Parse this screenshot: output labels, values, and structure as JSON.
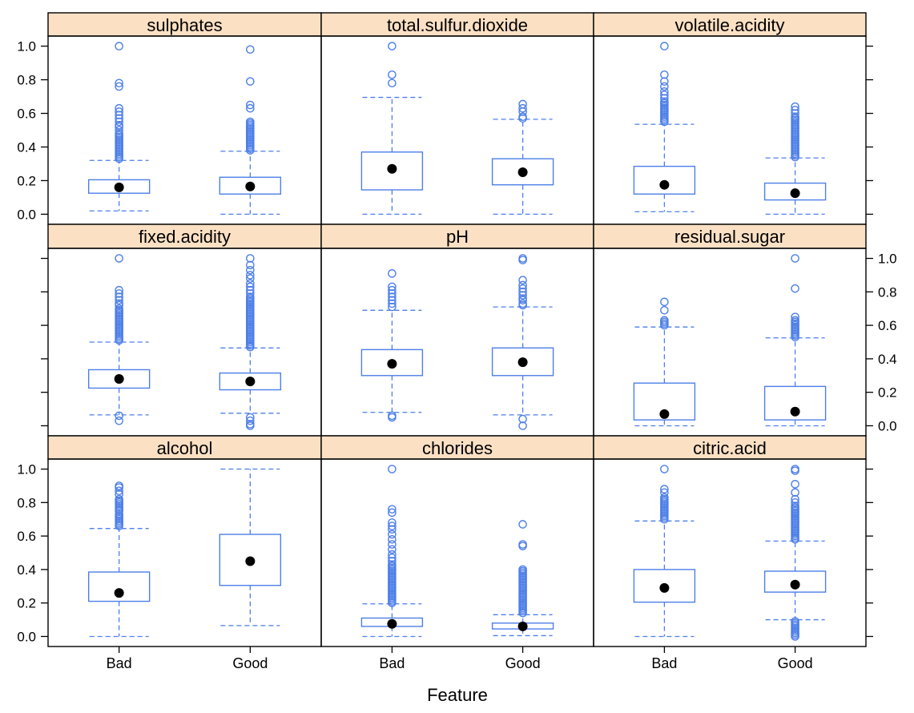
{
  "chart_data": {
    "type": "box",
    "xlabel": "Feature",
    "ylabel": "",
    "categories": [
      "Bad",
      "Good"
    ],
    "y_ticks": [
      "0.0",
      "0.2",
      "0.4",
      "0.6",
      "0.8",
      "1.0"
    ],
    "ylim": [
      -0.06,
      1.06
    ],
    "layout": {
      "rows": 3,
      "cols": 3
    },
    "colors": {
      "box": "#4d7fe8",
      "median_dot": "#000000",
      "strip_bg": "#fbe0c4",
      "frame": "#000000"
    },
    "panels": [
      {
        "title": "sulphates",
        "stats": [
          {
            "category": "Bad",
            "whisker_low": 0.02,
            "q1": 0.125,
            "median": 0.16,
            "q3": 0.205,
            "whisker_high": 0.32,
            "outliers": [
              0.33,
              0.34,
              0.35,
              0.36,
              0.37,
              0.38,
              0.39,
              0.4,
              0.41,
              0.42,
              0.43,
              0.44,
              0.45,
              0.46,
              0.47,
              0.48,
              0.5,
              0.52,
              0.53,
              0.55,
              0.57,
              0.59,
              0.61,
              0.63,
              0.76,
              0.78,
              1.0
            ]
          },
          {
            "category": "Good",
            "whisker_low": 0.0,
            "q1": 0.12,
            "median": 0.165,
            "q3": 0.22,
            "whisker_high": 0.375,
            "outliers": [
              0.38,
              0.39,
              0.4,
              0.41,
              0.42,
              0.43,
              0.44,
              0.45,
              0.46,
              0.47,
              0.48,
              0.49,
              0.5,
              0.51,
              0.52,
              0.53,
              0.54,
              0.55,
              0.63,
              0.65,
              0.79,
              0.98
            ]
          }
        ]
      },
      {
        "title": "total.sulfur.dioxide",
        "stats": [
          {
            "category": "Bad",
            "whisker_low": 0.0,
            "q1": 0.145,
            "median": 0.27,
            "q3": 0.37,
            "whisker_high": 0.695,
            "outliers": [
              0.78,
              0.83,
              1.0
            ]
          },
          {
            "category": "Good",
            "whisker_low": 0.0,
            "q1": 0.175,
            "median": 0.25,
            "q3": 0.33,
            "whisker_high": 0.565,
            "outliers": [
              0.57,
              0.58,
              0.61,
              0.63,
              0.655
            ]
          }
        ]
      },
      {
        "title": "volatile.acidity",
        "stats": [
          {
            "category": "Bad",
            "whisker_low": 0.015,
            "q1": 0.12,
            "median": 0.175,
            "q3": 0.285,
            "whisker_high": 0.535,
            "outliers": [
              0.55,
              0.56,
              0.57,
              0.58,
              0.59,
              0.6,
              0.61,
              0.62,
              0.63,
              0.64,
              0.65,
              0.66,
              0.67,
              0.69,
              0.71,
              0.73,
              0.76,
              0.79,
              0.83,
              1.0
            ]
          },
          {
            "category": "Good",
            "whisker_low": 0.0,
            "q1": 0.085,
            "median": 0.125,
            "q3": 0.185,
            "whisker_high": 0.335,
            "outliers": [
              0.34,
              0.35,
              0.36,
              0.37,
              0.38,
              0.39,
              0.4,
              0.41,
              0.42,
              0.43,
              0.44,
              0.45,
              0.46,
              0.47,
              0.48,
              0.49,
              0.5,
              0.51,
              0.52,
              0.53,
              0.54,
              0.55,
              0.56,
              0.57,
              0.58,
              0.6,
              0.62,
              0.64
            ]
          }
        ]
      },
      {
        "title": "fixed.acidity",
        "stats": [
          {
            "category": "Bad",
            "whisker_low": 0.065,
            "q1": 0.225,
            "median": 0.28,
            "q3": 0.335,
            "whisker_high": 0.5,
            "outliers": [
              0.03,
              0.06,
              0.51,
              0.52,
              0.53,
              0.54,
              0.55,
              0.56,
              0.57,
              0.58,
              0.59,
              0.6,
              0.61,
              0.62,
              0.63,
              0.64,
              0.65,
              0.66,
              0.67,
              0.68,
              0.69,
              0.7,
              0.72,
              0.73,
              0.75,
              0.77,
              0.79,
              0.81,
              1.0
            ]
          },
          {
            "category": "Good",
            "whisker_low": 0.075,
            "q1": 0.215,
            "median": 0.265,
            "q3": 0.315,
            "whisker_high": 0.465,
            "outliers": [
              0.0,
              0.01,
              0.03,
              0.05,
              0.47,
              0.48,
              0.49,
              0.5,
              0.51,
              0.52,
              0.53,
              0.54,
              0.55,
              0.56,
              0.57,
              0.58,
              0.59,
              0.6,
              0.61,
              0.62,
              0.63,
              0.64,
              0.65,
              0.66,
              0.67,
              0.68,
              0.69,
              0.7,
              0.71,
              0.72,
              0.73,
              0.74,
              0.75,
              0.76,
              0.77,
              0.79,
              0.81,
              0.83,
              0.85,
              0.88,
              0.9,
              0.93,
              0.96,
              1.0
            ]
          }
        ]
      },
      {
        "title": "pH",
        "stats": [
          {
            "category": "Bad",
            "whisker_low": 0.08,
            "q1": 0.3,
            "median": 0.37,
            "q3": 0.455,
            "whisker_high": 0.69,
            "outliers": [
              0.05,
              0.06,
              0.71,
              0.73,
              0.75,
              0.77,
              0.79,
              0.81,
              0.83,
              0.91
            ]
          },
          {
            "category": "Good",
            "whisker_low": 0.065,
            "q1": 0.3,
            "median": 0.38,
            "q3": 0.465,
            "whisker_high": 0.71,
            "outliers": [
              0.0,
              0.04,
              0.72,
              0.73,
              0.75,
              0.76,
              0.78,
              0.8,
              0.82,
              0.84,
              0.87,
              0.99,
              1.0
            ]
          }
        ]
      },
      {
        "title": "residual.sugar",
        "stats": [
          {
            "category": "Bad",
            "whisker_low": 0.0,
            "q1": 0.035,
            "median": 0.07,
            "q3": 0.255,
            "whisker_high": 0.59,
            "outliers": [
              0.6,
              0.61,
              0.62,
              0.63,
              0.69,
              0.74
            ]
          },
          {
            "category": "Good",
            "whisker_low": 0.0,
            "q1": 0.035,
            "median": 0.085,
            "q3": 0.235,
            "whisker_high": 0.525,
            "outliers": [
              0.53,
              0.54,
              0.55,
              0.56,
              0.57,
              0.58,
              0.59,
              0.6,
              0.61,
              0.62,
              0.63,
              0.65,
              0.82,
              1.0
            ]
          }
        ]
      },
      {
        "title": "alcohol",
        "stats": [
          {
            "category": "Bad",
            "whisker_low": 0.0,
            "q1": 0.21,
            "median": 0.26,
            "q3": 0.385,
            "whisker_high": 0.645,
            "outliers": [
              0.66,
              0.67,
              0.68,
              0.69,
              0.7,
              0.71,
              0.72,
              0.73,
              0.75,
              0.76,
              0.77,
              0.78,
              0.79,
              0.8,
              0.81,
              0.82,
              0.85,
              0.87,
              0.89,
              0.9
            ]
          },
          {
            "category": "Good",
            "whisker_low": 0.065,
            "q1": 0.305,
            "median": 0.45,
            "q3": 0.61,
            "whisker_high": 1.0,
            "outliers": []
          }
        ]
      },
      {
        "title": "chlorides",
        "stats": [
          {
            "category": "Bad",
            "whisker_low": 0.0,
            "q1": 0.06,
            "median": 0.075,
            "q3": 0.11,
            "whisker_high": 0.195,
            "outliers": [
              0.2,
              0.21,
              0.22,
              0.23,
              0.24,
              0.25,
              0.26,
              0.27,
              0.28,
              0.29,
              0.3,
              0.31,
              0.32,
              0.33,
              0.34,
              0.35,
              0.36,
              0.37,
              0.38,
              0.39,
              0.4,
              0.41,
              0.42,
              0.43,
              0.45,
              0.47,
              0.49,
              0.52,
              0.55,
              0.58,
              0.61,
              0.64,
              0.66,
              0.68,
              0.74,
              0.76,
              1.0
            ]
          },
          {
            "category": "Good",
            "whisker_low": 0.005,
            "q1": 0.045,
            "median": 0.06,
            "q3": 0.08,
            "whisker_high": 0.13,
            "outliers": [
              0.14,
              0.15,
              0.16,
              0.17,
              0.18,
              0.19,
              0.2,
              0.21,
              0.22,
              0.23,
              0.24,
              0.25,
              0.26,
              0.27,
              0.28,
              0.29,
              0.3,
              0.31,
              0.32,
              0.33,
              0.34,
              0.35,
              0.36,
              0.37,
              0.38,
              0.39,
              0.4,
              0.54,
              0.55,
              0.67
            ]
          }
        ]
      },
      {
        "title": "citric.acid",
        "stats": [
          {
            "category": "Bad",
            "whisker_low": 0.0,
            "q1": 0.205,
            "median": 0.29,
            "q3": 0.4,
            "whisker_high": 0.69,
            "outliers": [
              0.7,
              0.71,
              0.72,
              0.73,
              0.74,
              0.75,
              0.76,
              0.77,
              0.78,
              0.79,
              0.8,
              0.81,
              0.82,
              0.83,
              0.86,
              0.88,
              1.0
            ]
          },
          {
            "category": "Good",
            "whisker_low": 0.1,
            "q1": 0.265,
            "median": 0.31,
            "q3": 0.39,
            "whisker_high": 0.57,
            "outliers": [
              0.0,
              0.01,
              0.02,
              0.03,
              0.04,
              0.05,
              0.06,
              0.07,
              0.08,
              0.09,
              0.58,
              0.59,
              0.6,
              0.61,
              0.62,
              0.63,
              0.64,
              0.65,
              0.66,
              0.67,
              0.68,
              0.69,
              0.7,
              0.71,
              0.72,
              0.73,
              0.74,
              0.75,
              0.76,
              0.77,
              0.78,
              0.8,
              0.82,
              0.86,
              0.91,
              0.99,
              1.0
            ]
          }
        ]
      }
    ]
  }
}
